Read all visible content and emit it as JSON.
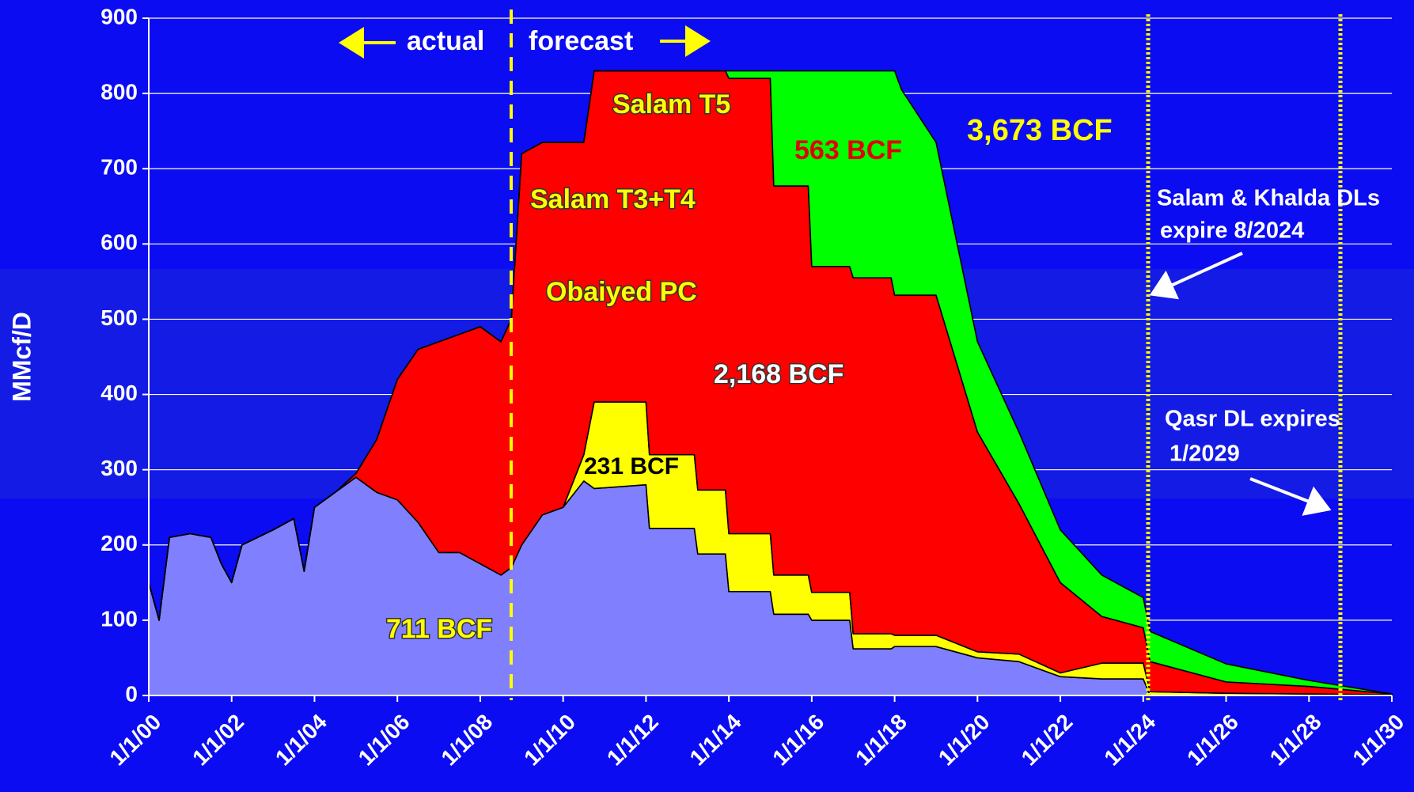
{
  "chart_data": {
    "type": "stacked_area",
    "y_label": "MMcf/D",
    "annotations": [
      "actual",
      "forecast",
      "Salam T5",
      "563 BCF",
      "3,673 BCF",
      "Salam T3+T4",
      "Obaiyed PC",
      "2,168 BCF",
      "231 BCF",
      "711 BCF",
      "Salam & Khalda DLs",
      "expire 8/2024",
      "Qasr DL expires",
      "1/2029"
    ],
    "x": [
      "1/1/00",
      "4/1/00",
      "7/1/00",
      "1/1/01",
      "7/1/01",
      "10/1/01",
      "1/1/02",
      "4/1/02",
      "1/1/03",
      "7/1/03",
      "10/1/03",
      "1/1/04",
      "7/1/04",
      "1/1/05",
      "7/1/05",
      "1/1/06",
      "7/1/06",
      "1/1/07",
      "7/1/07",
      "1/1/08",
      "7/1/08",
      "10/1/08",
      "1/1/09",
      "7/1/09",
      "1/1/10",
      "7/1/10",
      "10/1/10",
      "1/1/12",
      "2/1/12",
      "3/1/13",
      "4/1/13",
      "12/1/13",
      "1/1/14",
      "1/1/15",
      "2/1/15",
      "12/1/15",
      "1/1/16",
      "12/1/16",
      "1/1/17",
      "12/1/17",
      "1/1/18",
      "3/1/18",
      "1/1/19",
      "1/1/20",
      "1/1/21",
      "1/1/22",
      "1/1/23",
      "1/1/24",
      "3/1/24",
      "1/1/26",
      "1/1/28",
      "1/1/30"
    ],
    "series": [
      {
        "color": "#8080ff",
        "values": [
          150,
          100,
          210,
          215,
          210,
          175,
          150,
          200,
          220,
          235,
          165,
          250,
          270,
          290,
          270,
          260,
          230,
          190,
          190,
          175,
          160,
          170,
          200,
          240,
          250,
          285,
          275,
          280,
          222,
          222,
          188,
          188,
          138,
          138,
          108,
          108,
          100,
          100,
          62,
          62,
          65,
          65,
          65,
          50,
          45,
          25,
          22,
          22,
          0,
          0,
          0,
          0
        ]
      },
      {
        "color": "#ffff00",
        "values": [
          0,
          0,
          0,
          0,
          0,
          0,
          0,
          0,
          0,
          0,
          0,
          0,
          0,
          0,
          0,
          0,
          0,
          0,
          0,
          0,
          0,
          0,
          0,
          0,
          0,
          35,
          115,
          110,
          98,
          98,
          85,
          85,
          77,
          77,
          52,
          52,
          37,
          37,
          20,
          20,
          15,
          15,
          15,
          8,
          10,
          5,
          21,
          21,
          5,
          3,
          2,
          1
        ]
      },
      {
        "color": "#ff0000",
        "values": [
          0,
          0,
          0,
          0,
          0,
          0,
          0,
          0,
          0,
          0,
          0,
          0,
          0,
          5,
          70,
          160,
          230,
          280,
          290,
          315,
          310,
          330,
          520,
          495,
          485,
          415,
          440,
          440,
          510,
          510,
          557,
          557,
          605,
          605,
          517,
          517,
          433,
          433,
          473,
          473,
          452,
          452,
          452,
          292,
          200,
          120,
          62,
          47,
          40,
          15,
          10,
          1
        ]
      },
      {
        "color": "#00ff00",
        "values": [
          0,
          0,
          0,
          0,
          0,
          0,
          0,
          0,
          0,
          0,
          0,
          0,
          0,
          0,
          0,
          0,
          0,
          0,
          0,
          0,
          0,
          0,
          0,
          0,
          0,
          0,
          0,
          0,
          0,
          0,
          0,
          0,
          10,
          10,
          153,
          153,
          260,
          260,
          275,
          275,
          298,
          273,
          203,
          120,
          95,
          70,
          55,
          40,
          40,
          24,
          8,
          0
        ]
      }
    ],
    "xlim": [
      "1/1/00",
      "1/1/30"
    ],
    "xticks": [
      "1/1/00",
      "1/1/02",
      "1/1/04",
      "1/1/06",
      "1/1/08",
      "1/1/10",
      "1/1/12",
      "1/1/14",
      "1/1/16",
      "1/1/18",
      "1/1/20",
      "1/1/22",
      "1/1/24",
      "1/1/26",
      "1/1/28",
      "1/1/30"
    ],
    "ylim": [
      0,
      900
    ],
    "yticks": [
      0,
      100,
      200,
      300,
      400,
      500,
      600,
      700,
      800,
      900
    ],
    "grid": true
  }
}
